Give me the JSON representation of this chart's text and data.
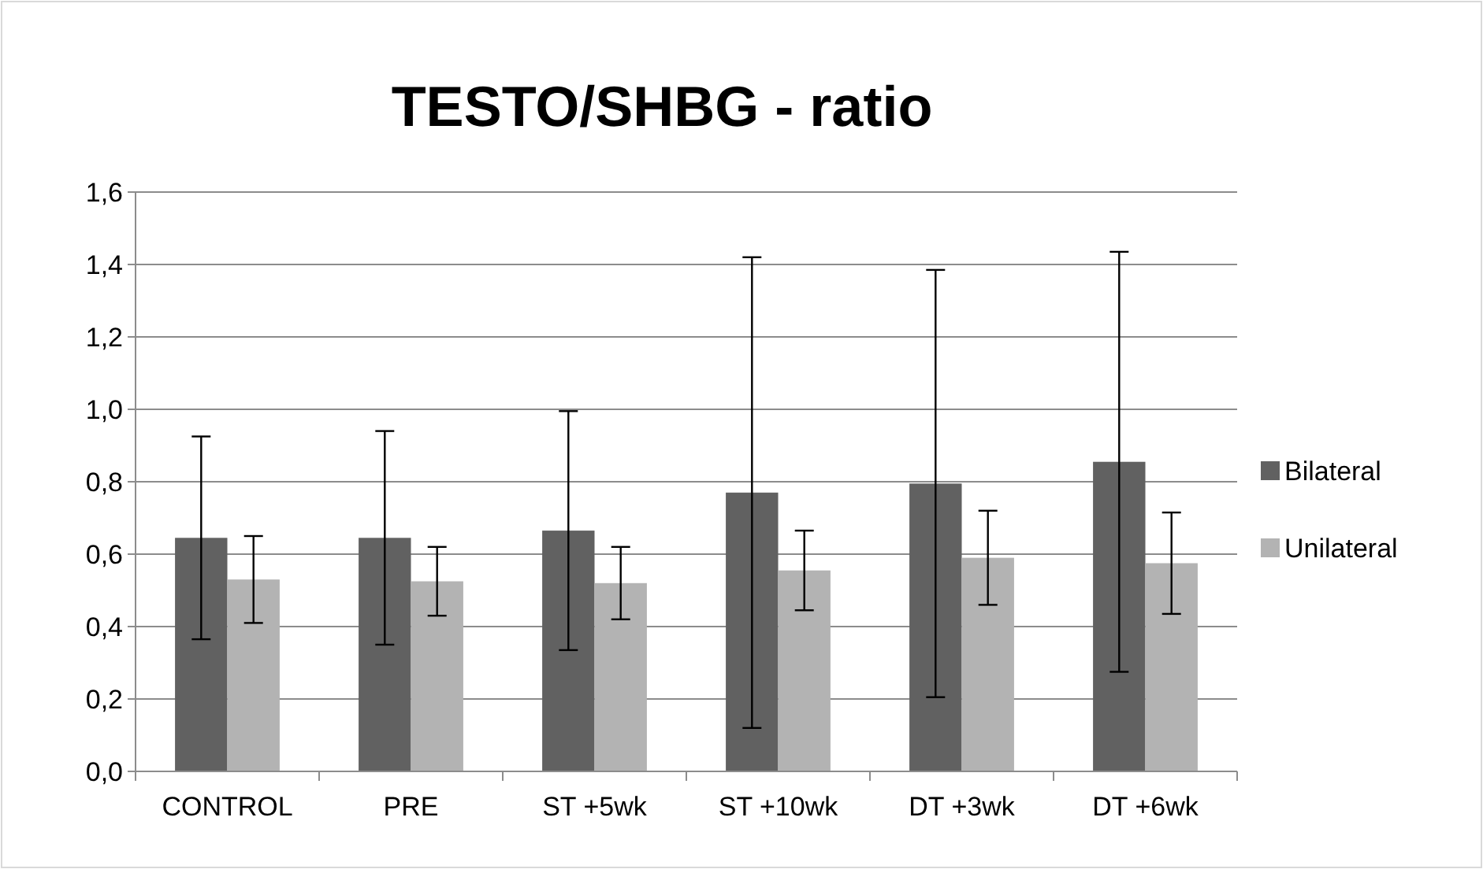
{
  "chart_data": {
    "type": "bar",
    "title": "TESTO/SHBG - ratio",
    "categories": [
      "CONTROL",
      "PRE",
      "ST +5wk",
      "ST +10wk",
      "DT +3wk",
      "DT +6wk"
    ],
    "series": [
      {
        "name": "Bilateral",
        "color": "#616161",
        "values": [
          0.645,
          0.645,
          0.665,
          0.77,
          0.795,
          0.855
        ],
        "errors": [
          0.28,
          0.295,
          0.33,
          0.65,
          0.59,
          0.58
        ]
      },
      {
        "name": "Unilateral",
        "color": "#b3b3b3",
        "values": [
          0.53,
          0.525,
          0.52,
          0.555,
          0.59,
          0.575
        ],
        "errors": [
          0.12,
          0.095,
          0.1,
          0.11,
          0.13,
          0.14
        ]
      }
    ],
    "ylim": [
      0,
      1.6
    ],
    "yticks": [
      {
        "value": 0,
        "label": "0,0"
      },
      {
        "value": 0.2,
        "label": "0,2"
      },
      {
        "value": 0.4,
        "label": "0,4"
      },
      {
        "value": 0.6,
        "label": "0,6"
      },
      {
        "value": 0.8,
        "label": "0,8"
      },
      {
        "value": 1.0,
        "label": "1,0"
      },
      {
        "value": 1.2,
        "label": "1,2"
      },
      {
        "value": 1.4,
        "label": "1,4"
      },
      {
        "value": 1.6,
        "label": "1,6"
      }
    ],
    "grid": "y",
    "legend": "right"
  }
}
